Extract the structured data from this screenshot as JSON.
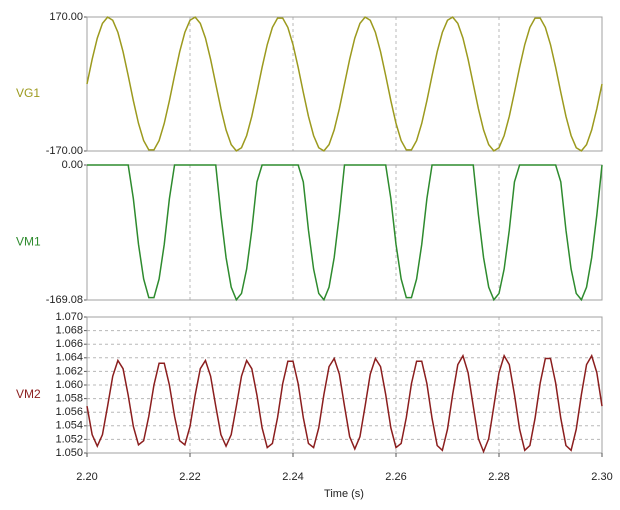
{
  "chart_data": {
    "type": "line",
    "xlabel": "Time (s)",
    "xlim": [
      2.2,
      2.3
    ],
    "xticks": [
      {
        "value": 2.2,
        "label": "2.20"
      },
      {
        "value": 2.22,
        "label": "2.22"
      },
      {
        "value": 2.24,
        "label": "2.24"
      },
      {
        "value": 2.26,
        "label": "2.26"
      },
      {
        "value": 2.28,
        "label": "2.28"
      },
      {
        "value": 2.3,
        "label": "2.30"
      }
    ],
    "grid": true,
    "x": [
      2.2,
      2.201,
      2.202,
      2.203,
      2.204,
      2.205,
      2.206,
      2.207,
      2.208,
      2.209,
      2.21,
      2.211,
      2.212,
      2.213,
      2.214,
      2.215,
      2.216,
      2.217,
      2.218,
      2.219,
      2.22,
      2.221,
      2.222,
      2.223,
      2.224,
      2.225,
      2.226,
      2.227,
      2.228,
      2.229,
      2.23,
      2.231,
      2.232,
      2.233,
      2.234,
      2.235,
      2.236,
      2.237,
      2.238,
      2.239,
      2.24,
      2.241,
      2.242,
      2.243,
      2.244,
      2.245,
      2.246,
      2.247,
      2.248,
      2.249,
      2.25,
      2.251,
      2.252,
      2.253,
      2.254,
      2.255,
      2.256,
      2.257,
      2.258,
      2.259,
      2.26,
      2.261,
      2.262,
      2.263,
      2.264,
      2.265,
      2.266,
      2.267,
      2.268,
      2.269,
      2.27,
      2.271,
      2.272,
      2.273,
      2.274,
      2.275,
      2.276,
      2.277,
      2.278,
      2.279,
      2.28,
      2.281,
      2.282,
      2.283,
      2.284,
      2.285,
      2.286,
      2.287,
      2.288,
      2.289,
      2.29,
      2.291,
      2.292,
      2.293,
      2.294,
      2.295,
      2.296,
      2.297,
      2.298,
      2.299,
      2.3
    ],
    "series": [
      {
        "name": "VG1",
        "color": "#9c9a1e",
        "ylim": [
          -170,
          170
        ],
        "yticks": [
          {
            "value": -170,
            "label": "-170.00"
          },
          {
            "value": 170,
            "label": "170.00"
          }
        ],
        "values": [
          0,
          62.6,
          116.4,
          153.8,
          169.7,
          161.7,
          131.0,
          81.9,
          21.3,
          -42.3,
          -99.9,
          -143.5,
          -167.0,
          -167.0,
          -143.5,
          -99.9,
          -42.3,
          21.3,
          81.9,
          131.0,
          161.7,
          169.7,
          153.8,
          116.4,
          62.6,
          0,
          -62.6,
          -116.4,
          -153.8,
          -169.7,
          -161.7,
          -131.0,
          -81.9,
          -21.3,
          42.3,
          99.9,
          143.5,
          167.0,
          167.0,
          143.5,
          99.9,
          42.3,
          -21.3,
          -81.9,
          -131.0,
          -161.7,
          -169.7,
          -153.8,
          -116.4,
          -62.6,
          0,
          62.6,
          116.4,
          153.8,
          169.7,
          161.7,
          131.0,
          81.9,
          21.3,
          -42.3,
          -99.9,
          -143.5,
          -167.0,
          -167.0,
          -143.5,
          -99.9,
          -42.3,
          21.3,
          81.9,
          131.0,
          161.7,
          169.7,
          153.8,
          116.4,
          62.6,
          0,
          -62.6,
          -116.4,
          -153.8,
          -169.7,
          -161.7,
          -131.0,
          -81.9,
          -21.3,
          42.3,
          99.9,
          143.5,
          167.0,
          167.0,
          143.5,
          99.9,
          42.3,
          -21.3,
          -81.9,
          -131.0,
          -161.7,
          -169.7,
          -153.8,
          -116.4,
          -62.6,
          0
        ]
      },
      {
        "name": "VM1",
        "color": "#2e8b2e",
        "ylim": [
          -169.08,
          0
        ],
        "yticks": [
          -169.08,
          {
            "value": 0,
            "label": "0.00"
          }
        ],
        "values": [
          0,
          0,
          0,
          0,
          0,
          0,
          0,
          0,
          0,
          -42.1,
          -99.4,
          -142.7,
          -166.1,
          -166.1,
          -142.7,
          -99.4,
          -42.1,
          0,
          0,
          0,
          0,
          0,
          0,
          0,
          0,
          0,
          -62.3,
          -115.8,
          -153.0,
          -168.8,
          -160.9,
          -130.3,
          -81.5,
          -21.2,
          0,
          0,
          0,
          0,
          0,
          0,
          0,
          0,
          -21.2,
          -81.5,
          -130.3,
          -160.9,
          -168.8,
          -153.0,
          -115.8,
          -62.3,
          0,
          0,
          0,
          0,
          0,
          0,
          0,
          0,
          0,
          -42.1,
          -99.4,
          -142.7,
          -166.1,
          -166.1,
          -142.7,
          -99.4,
          -42.1,
          0,
          0,
          0,
          0,
          0,
          0,
          0,
          0,
          0,
          -62.3,
          -115.8,
          -153.0,
          -168.8,
          -160.9,
          -130.3,
          -81.5,
          -21.2,
          0,
          0,
          0,
          0,
          0,
          0,
          0,
          0,
          -21.2,
          -81.5,
          -130.3,
          -160.9,
          -168.8,
          -153.0,
          -115.8,
          -62.3,
          0
        ]
      },
      {
        "name": "VM2",
        "color": "#8b1e1e",
        "ylim": [
          1.05,
          1.07
        ],
        "yticks": [
          {
            "value": 1.05,
            "label": "1.050"
          },
          1.052,
          1.054,
          1.056,
          1.058,
          {
            "value": 1.06,
            "label": "1.060"
          },
          1.062,
          1.064,
          1.066,
          1.068,
          {
            "value": 1.07,
            "label": "1.070"
          }
        ],
        "values": [
          1.0569,
          1.0527,
          1.051,
          1.0527,
          1.0569,
          1.0613,
          1.0636,
          1.0624,
          1.0585,
          1.0539,
          1.0512,
          1.0518,
          1.0554,
          1.06,
          1.0632,
          1.0632,
          1.06,
          1.0554,
          1.0518,
          1.0512,
          1.0539,
          1.0585,
          1.0624,
          1.0636,
          1.0613,
          1.0569,
          1.0527,
          1.051,
          1.0527,
          1.0569,
          1.0613,
          1.0636,
          1.0624,
          1.0585,
          1.0537,
          1.0508,
          1.0514,
          1.0552,
          1.0602,
          1.0635,
          1.0635,
          1.0602,
          1.0552,
          1.0514,
          1.0508,
          1.0537,
          1.0586,
          1.0627,
          1.0639,
          1.0616,
          1.0569,
          1.0524,
          1.0506,
          1.0524,
          1.0569,
          1.0616,
          1.0639,
          1.0627,
          1.0586,
          1.0537,
          1.0508,
          1.0514,
          1.0552,
          1.0602,
          1.0635,
          1.0635,
          1.0602,
          1.0551,
          1.0511,
          1.0504,
          1.0535,
          1.0586,
          1.063,
          1.0643,
          1.0618,
          1.0569,
          1.0521,
          1.0502,
          1.0521,
          1.0569,
          1.0618,
          1.0643,
          1.063,
          1.0586,
          1.0535,
          1.0504,
          1.0511,
          1.0551,
          1.0603,
          1.0639,
          1.0639,
          1.0603,
          1.0551,
          1.0511,
          1.0504,
          1.0535,
          1.0586,
          1.063,
          1.0643,
          1.0618,
          1.0569
        ]
      }
    ]
  }
}
